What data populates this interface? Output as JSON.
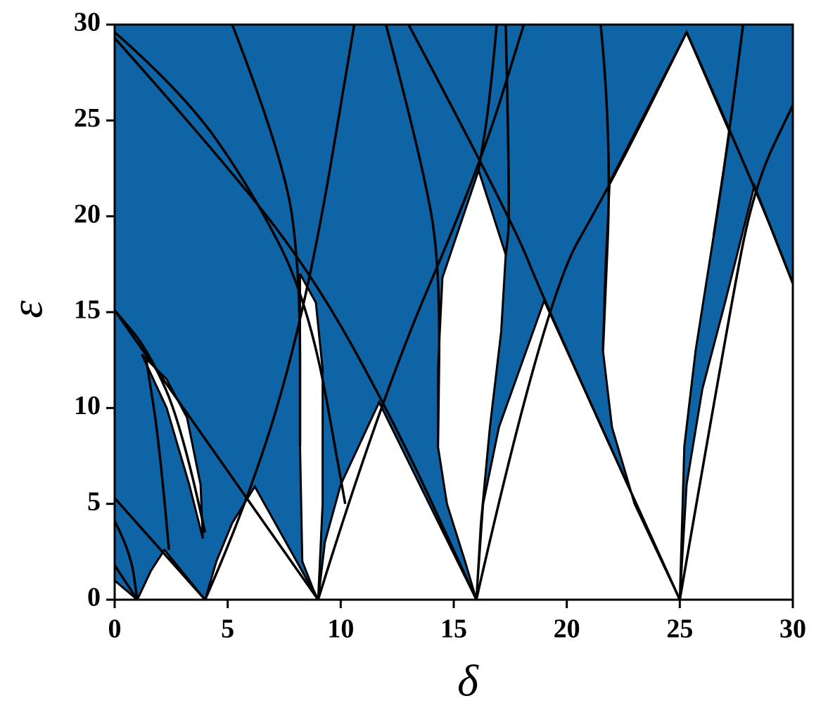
{
  "chart_data": {
    "type": "region",
    "xlabel": "δ",
    "ylabel": "ε",
    "xlim": [
      0,
      30
    ],
    "ylim": [
      0,
      30
    ],
    "xticks": [
      0,
      5,
      10,
      15,
      20,
      25,
      30
    ],
    "yticks": [
      0,
      5,
      10,
      15,
      20,
      25,
      30
    ],
    "fill_color": "#0f64a6",
    "stable_color": "#ffffff",
    "line_color": "#000000",
    "regions": [
      {
        "x": [
          0,
          0,
          1
        ],
        "y": [
          0,
          1,
          0
        ]
      },
      {
        "x": [
          1,
          1.6,
          2.2,
          4
        ],
        "y": [
          0,
          1.5,
          2.6,
          0
        ]
      },
      {
        "x": [
          1.2,
          2.3,
          3.3,
          3.9,
          3.8,
          3.2,
          2.3
        ],
        "y": [
          12.8,
          10,
          6,
          3.2,
          6,
          9.5,
          11.5
        ]
      },
      {
        "x": [
          4,
          4.5,
          5.2,
          6.2,
          9
        ],
        "y": [
          0,
          2,
          4,
          5.9,
          0
        ]
      },
      {
        "x": [
          8.2,
          8.2,
          8.3,
          8.8,
          9,
          9.2,
          9.2,
          8.9
        ],
        "y": [
          17,
          8,
          2,
          0.5,
          0,
          5,
          12,
          15.5
        ]
      },
      {
        "x": [
          9,
          9.3,
          10,
          11.7,
          16
        ],
        "y": [
          0,
          3,
          6,
          10.3,
          0
        ]
      },
      {
        "x": [
          16.1,
          14.5,
          14.3,
          14.3,
          14.7,
          15.5,
          16,
          16.2,
          16.6,
          17.1,
          17.3
        ],
        "y": [
          22.4,
          16.8,
          12,
          8,
          5,
          2,
          0,
          4,
          9,
          14,
          18
        ]
      },
      {
        "x": [
          16,
          16.3,
          17,
          19,
          25
        ],
        "y": [
          0,
          5,
          9,
          15.6,
          0
        ]
      },
      {
        "x": [
          25.3,
          27.2,
          26.5,
          25.7,
          25.2,
          25,
          23,
          22,
          21.6,
          21.7,
          21.9
        ],
        "y": [
          29.6,
          24.4,
          19,
          13,
          8,
          0,
          5,
          9,
          13,
          17,
          21.8
        ]
      },
      {
        "x": [
          25,
          25.3,
          26,
          27,
          28.3,
          30,
          30
        ],
        "y": [
          0,
          6,
          11,
          15.5,
          21.6,
          16.5,
          0
        ]
      }
    ],
    "curves": [
      {
        "x": [
          0,
          9
        ],
        "y": [
          15.1,
          0
        ]
      },
      {
        "x": [
          0,
          4
        ],
        "y": [
          5.3,
          0
        ]
      },
      {
        "x": [
          0,
          1
        ],
        "y": [
          1.8,
          0
        ]
      },
      {
        "x": [
          0,
          0.7,
          1
        ],
        "y": [
          4.1,
          2.5,
          0
        ]
      },
      {
        "x": [
          0,
          4,
          8.6,
          12.5,
          16
        ],
        "y": [
          29.3,
          24,
          17.3,
          9,
          0
        ]
      },
      {
        "x": [
          0,
          3,
          6,
          8.6,
          10.2
        ],
        "y": [
          29.6,
          26.5,
          21.5,
          15.5,
          5
        ]
      },
      {
        "x": [
          9,
          11.7,
          16.1,
          18.1
        ],
        "y": [
          0,
          10.3,
          22.4,
          30
        ]
      },
      {
        "x": [
          16,
          19,
          22,
          25.3
        ],
        "y": [
          0,
          15.6,
          21.8,
          29.6
        ]
      },
      {
        "x": [
          13,
          17.5,
          19,
          25
        ],
        "y": [
          30,
          20,
          15.6,
          0
        ]
      },
      {
        "x": [
          4,
          6.2,
          8.6,
          10.6
        ],
        "y": [
          0,
          5.9,
          16,
          30
        ]
      },
      {
        "x": [
          25.3,
          28.3,
          30
        ],
        "y": [
          29.6,
          21.6,
          16.5
        ]
      },
      {
        "x": [
          25,
          27.2,
          28.3,
          30
        ],
        "y": [
          0,
          15,
          21.6,
          25.8
        ]
      },
      {
        "x": [
          4,
          3,
          1.5,
          0
        ],
        "y": [
          3.5,
          9,
          13,
          15.1
        ]
      },
      {
        "x": [
          2.4,
          2,
          1.4
        ],
        "y": [
          2.6,
          8,
          12.5
        ]
      },
      {
        "x": [
          5.2,
          7.5,
          8.2,
          8.2
        ],
        "y": [
          30,
          23,
          17,
          8
        ]
      },
      {
        "x": [
          12,
          13.8,
          14.4,
          14.3
        ],
        "y": [
          30,
          22,
          16.8,
          8
        ]
      },
      {
        "x": [
          16.9,
          16.6,
          16.1
        ],
        "y": [
          30,
          26,
          22.4
        ]
      },
      {
        "x": [
          17.3,
          17.5,
          17.3
        ],
        "y": [
          30,
          20,
          18
        ]
      },
      {
        "x": [
          21.5,
          22,
          21.6
        ],
        "y": [
          30,
          24,
          13
        ]
      },
      {
        "x": [
          27.8,
          27.2,
          26.5
        ],
        "y": [
          30,
          24.4,
          19
        ]
      }
    ]
  }
}
